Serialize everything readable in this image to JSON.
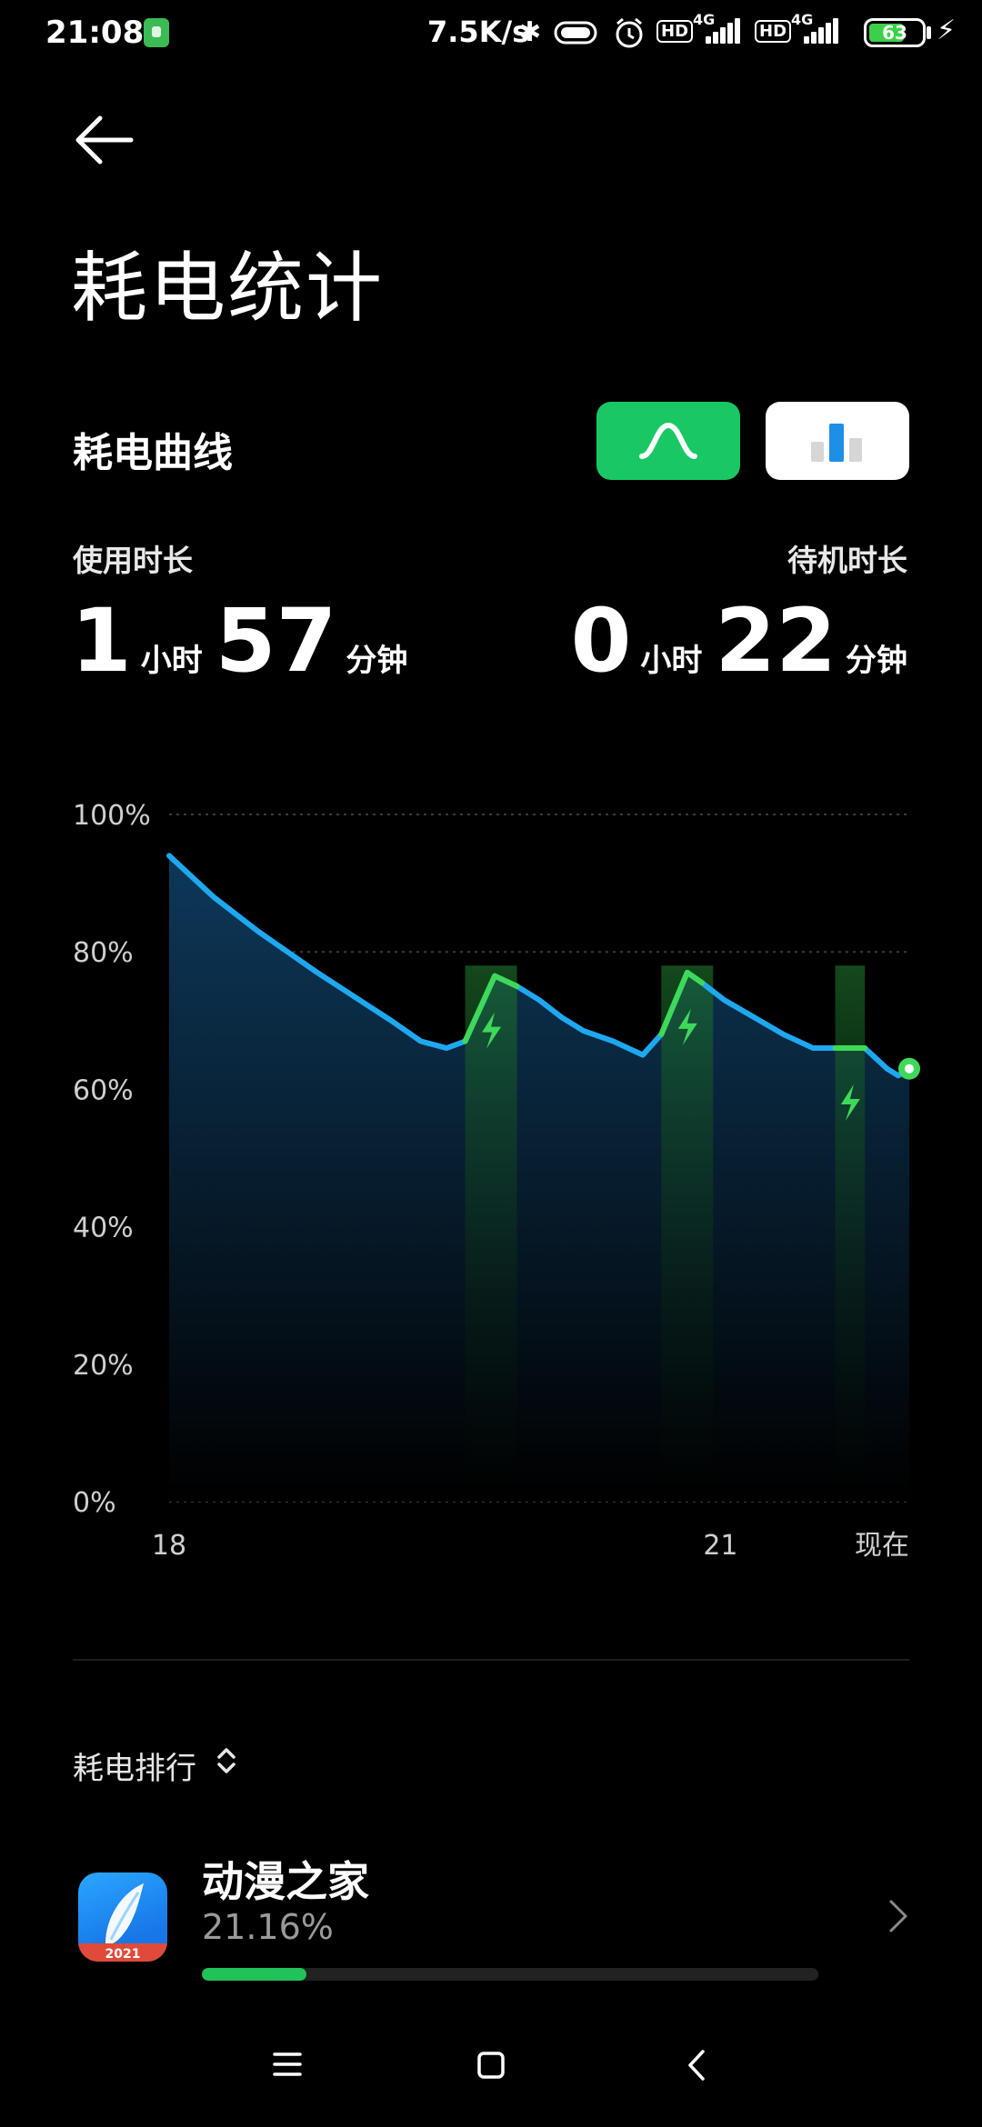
{
  "status_bar": {
    "time": "21:08",
    "speed": "7.5K/s",
    "hd1": "HD",
    "net1": "4G",
    "hd2": "HD",
    "net2": "4G",
    "battery_level": "63"
  },
  "header": {
    "title": "耗电统计",
    "subtitle": "耗电曲线"
  },
  "usage": {
    "label": "使用时长",
    "hours": "1",
    "hours_unit": "小时",
    "minutes": "57",
    "minutes_unit": "分钟"
  },
  "standby": {
    "label": "待机时长",
    "hours": "0",
    "hours_unit": "小时",
    "minutes": "22",
    "minutes_unit": "分钟"
  },
  "chart_data": {
    "type": "area",
    "y_ticks": [
      "100%",
      "80%",
      "60%",
      "40%",
      "20%",
      "0%"
    ],
    "ylim": [
      0,
      100
    ],
    "x_tick_labels": [
      {
        "label": "18",
        "t": 0.0
      },
      {
        "label": "21",
        "t": 0.745
      },
      {
        "label": "现在",
        "t": 1.0
      }
    ],
    "series": [
      {
        "points": [
          [
            0.0,
            94
          ],
          [
            0.03,
            91
          ],
          [
            0.06,
            88
          ],
          [
            0.09,
            85.5
          ],
          [
            0.12,
            83
          ],
          [
            0.16,
            80
          ],
          [
            0.2,
            77
          ],
          [
            0.25,
            73.5
          ],
          [
            0.3,
            70
          ],
          [
            0.34,
            67
          ],
          [
            0.375,
            66
          ],
          [
            0.4,
            67
          ],
          [
            0.44,
            76.5
          ],
          [
            0.47,
            75
          ],
          [
            0.5,
            73
          ],
          [
            0.53,
            70.5
          ],
          [
            0.56,
            68.5
          ],
          [
            0.6,
            67
          ],
          [
            0.64,
            65
          ],
          [
            0.665,
            68
          ],
          [
            0.7,
            77
          ],
          [
            0.72,
            75.5
          ],
          [
            0.75,
            73
          ],
          [
            0.79,
            70.5
          ],
          [
            0.83,
            68
          ],
          [
            0.87,
            66
          ],
          [
            0.9,
            66
          ],
          [
            0.94,
            66
          ],
          [
            0.97,
            63
          ],
          [
            0.985,
            62
          ],
          [
            1.0,
            63
          ]
        ]
      }
    ],
    "charging_segments": [
      {
        "start": 0.4,
        "end": 0.47
      },
      {
        "start": 0.665,
        "end": 0.735
      },
      {
        "start": 0.9,
        "end": 0.94
      }
    ],
    "colors": {
      "line": "#1ea8f0",
      "charging": "#3fd95a",
      "area_top": "#0d3a5c",
      "grid": "#3a3a3a"
    }
  },
  "ranking": {
    "title": "耗电排行",
    "apps": [
      {
        "name": "动漫之家",
        "percent": "21.16%",
        "fraction": 0.17,
        "icon_badge": "2021"
      }
    ]
  }
}
